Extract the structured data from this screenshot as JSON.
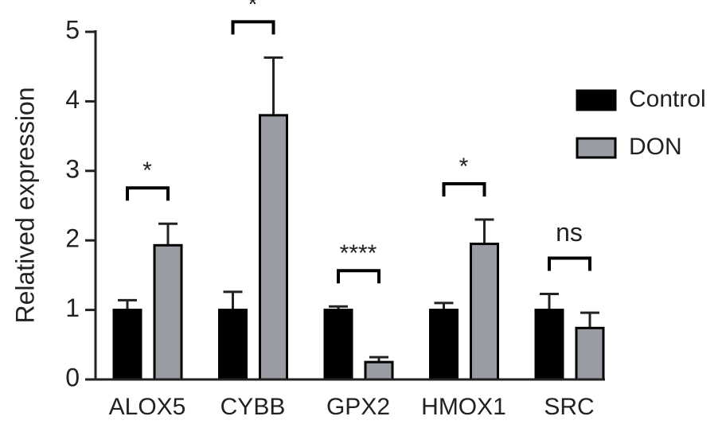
{
  "chart_data": {
    "type": "bar",
    "y_label": "Relatived expression",
    "categories": [
      "ALOX5",
      "CYBB",
      "GPX2",
      "HMOX1",
      "SRC"
    ],
    "series": [
      {
        "name": "Control",
        "color": "#000000",
        "values": [
          1,
          1,
          1,
          1,
          1
        ],
        "errors": [
          0.14,
          0.26,
          0.05,
          0.1,
          0.23
        ]
      },
      {
        "name": "DON",
        "color": "#9a9ca3",
        "values": [
          1.93,
          3.8,
          0.25,
          1.95,
          0.74
        ],
        "errors": [
          0.31,
          0.83,
          0.07,
          0.35,
          0.22
        ]
      }
    ],
    "annotations": [
      "*",
      "*",
      "****",
      "*",
      "ns"
    ],
    "ylim": [
      0,
      5
    ],
    "yticks": [
      0,
      1,
      2,
      3,
      4,
      5
    ]
  }
}
